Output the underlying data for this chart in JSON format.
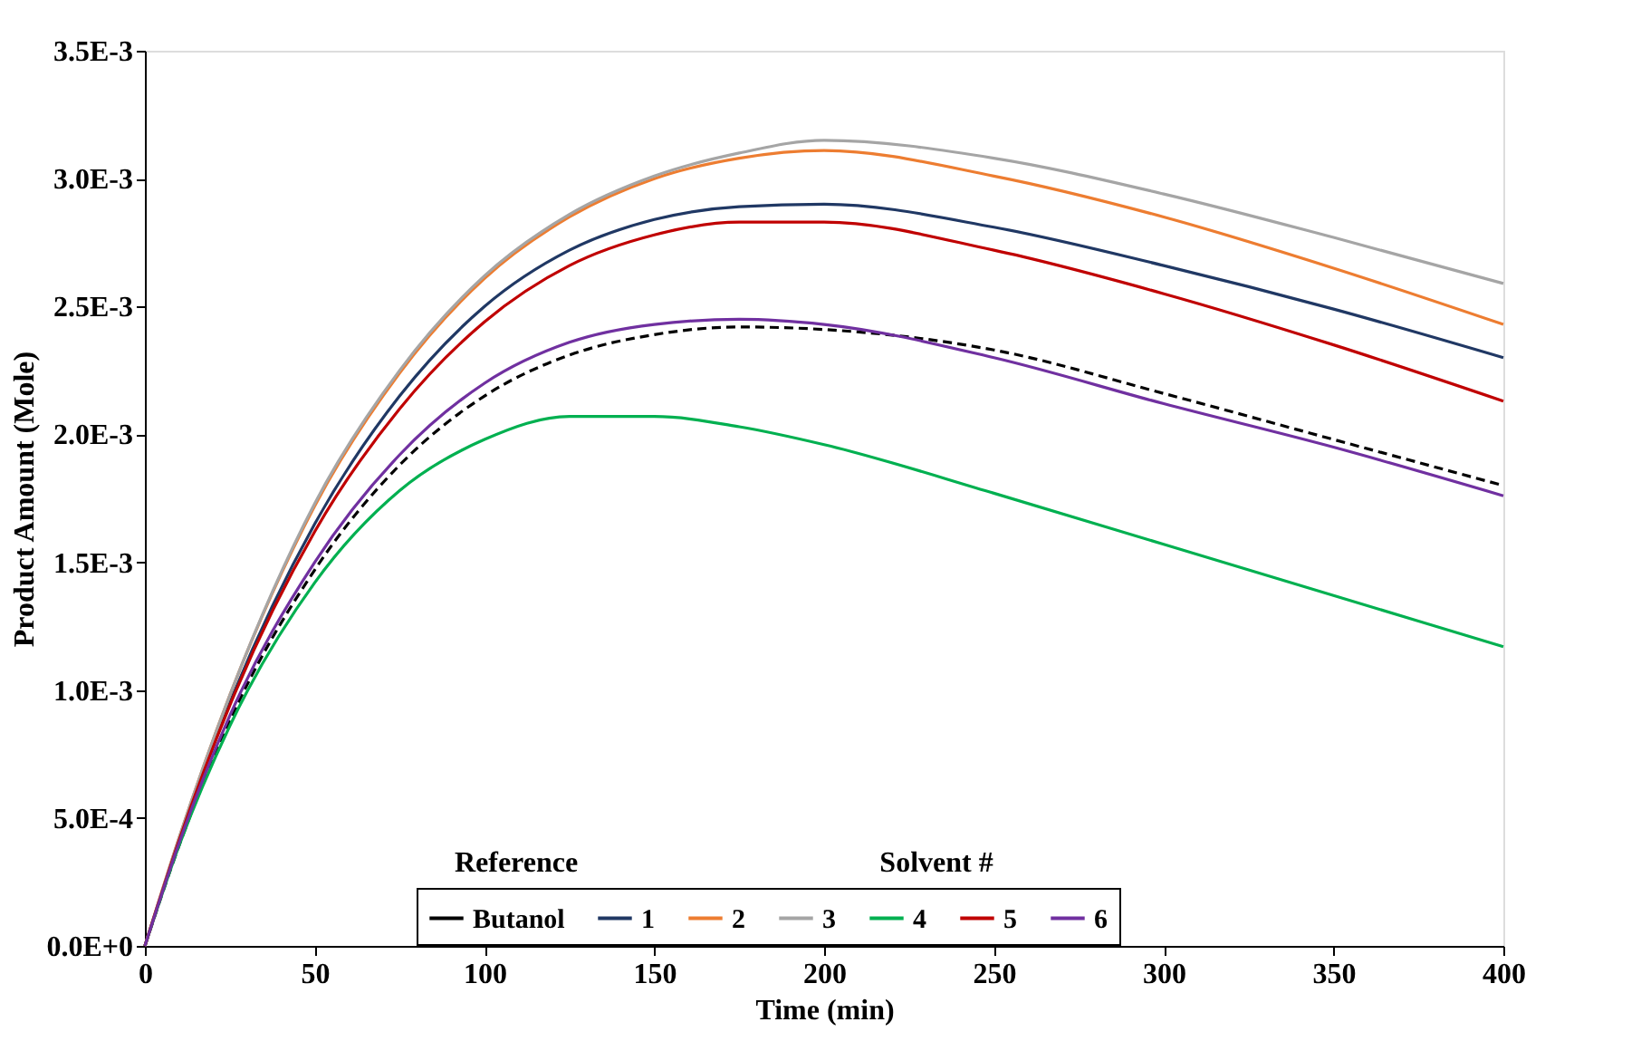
{
  "chart_data": {
    "type": "line",
    "xlabel": "Time (min)",
    "ylabel": "Product Amount (Mole)",
    "legend": "bottom",
    "legend_title": "Solvent #",
    "annotations": [
      "Reference"
    ],
    "grid": false,
    "marker": "none",
    "xlim": [
      0,
      400
    ],
    "xticks": [
      0,
      50,
      100,
      150,
      200,
      250,
      300,
      350,
      400
    ],
    "ylim": [
      0,
      0.0035
    ],
    "yticks": [
      {
        "value": 0,
        "label": "0.0E+0"
      },
      {
        "value": 0.0005,
        "label": "5.0E-4"
      },
      {
        "value": 0.001,
        "label": "1.0E-3"
      },
      {
        "value": 0.0015,
        "label": "1.5E-3"
      },
      {
        "value": 0.002,
        "label": "2.0E-3"
      },
      {
        "value": 0.0025,
        "label": "2.5E-3"
      },
      {
        "value": 0.003,
        "label": "3.0E-3"
      },
      {
        "value": 0.0035,
        "label": "3.5E-3"
      }
    ],
    "x": [
      0,
      10,
      25,
      50,
      75,
      100,
      125,
      150,
      175,
      200,
      250,
      300,
      350,
      400
    ],
    "series": [
      {
        "name": "Butanol",
        "color": "#000000",
        "line_style": "dashed",
        "values": [
          0,
          0.00039,
          0.00088,
          0.00147,
          0.00188,
          0.00215,
          0.00231,
          0.00239,
          0.00242,
          0.00241,
          0.00233,
          0.00216,
          0.00198,
          0.0018
        ]
      },
      {
        "name": "1",
        "color": "#203864",
        "line_style": "solid",
        "values": [
          0,
          0.00041,
          0.00095,
          0.00165,
          0.00215,
          0.0025,
          0.00272,
          0.00284,
          0.00289,
          0.0029,
          0.00281,
          0.00266,
          0.00249,
          0.0023
        ]
      },
      {
        "name": "2",
        "color": "#ed7d31",
        "line_style": "solid",
        "values": [
          0,
          0.00042,
          0.00098,
          0.00172,
          0.00224,
          0.00261,
          0.00285,
          0.003,
          0.00308,
          0.00311,
          0.00301,
          0.00285,
          0.00265,
          0.00243
        ]
      },
      {
        "name": "3",
        "color": "#a5a5a5",
        "line_style": "solid",
        "values": [
          0,
          0.00042,
          0.00098,
          0.00173,
          0.00225,
          0.00262,
          0.00286,
          0.00301,
          0.0031,
          0.00315,
          0.00308,
          0.00294,
          0.00277,
          0.00259
        ]
      },
      {
        "name": "4",
        "color": "#00b050",
        "line_style": "solid",
        "values": [
          0,
          0.00039,
          0.00086,
          0.00142,
          0.00178,
          0.00198,
          0.00207,
          0.00207,
          0.00203,
          0.00196,
          0.00177,
          0.00157,
          0.00137,
          0.00117
        ]
      },
      {
        "name": "5",
        "color": "#c00000",
        "line_style": "solid",
        "values": [
          0,
          0.00041,
          0.00094,
          0.00162,
          0.0021,
          0.00244,
          0.00266,
          0.00278,
          0.00283,
          0.00283,
          0.00272,
          0.00255,
          0.00235,
          0.00213
        ]
      },
      {
        "name": "6",
        "color": "#7030a0",
        "line_style": "solid",
        "values": [
          0,
          0.0004,
          0.0009,
          0.0015,
          0.00192,
          0.0022,
          0.00236,
          0.00243,
          0.00245,
          0.00243,
          0.0023,
          0.00212,
          0.00195,
          0.00176
        ]
      }
    ]
  }
}
